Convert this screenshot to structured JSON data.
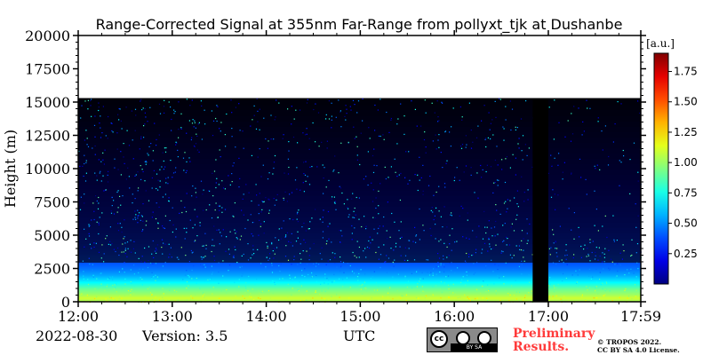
{
  "chart_data": {
    "type": "heatmap",
    "title": "Range-Corrected Signal at 355nm Far-Range from pollyxt_tjk at Dushanbe",
    "xlabel": "",
    "ylabel": "Height (m)",
    "x_ticks": [
      "12:00",
      "13:00",
      "14:00",
      "15:00",
      "16:00",
      "17:00",
      "17:59"
    ],
    "x_range": [
      "12:00",
      "17:59"
    ],
    "y_ticks": [
      0,
      2500,
      5000,
      7500,
      10000,
      12500,
      15000,
      17500,
      20000
    ],
    "ylim": [
      0,
      20000
    ],
    "data_top_height": 15300,
    "colorbar": {
      "label": "[a.u.]",
      "ticks": [
        0.25,
        0.5,
        0.75,
        1.0,
        1.25,
        1.5,
        1.75
      ],
      "tick_labels": [
        "0.25",
        "0.50",
        "0.75",
        "1.00",
        "1.25",
        "1.50",
        "1.75"
      ],
      "range": [
        0,
        1.9
      ],
      "colormap": "jet"
    },
    "no_data_intervals": [
      {
        "start": "16:50",
        "end": "17:00"
      }
    ],
    "profile": {
      "height_m": [
        0,
        300,
        600,
        1000,
        1500,
        2000,
        2500,
        3000,
        4000,
        5000,
        6000,
        8000,
        10000,
        12500,
        15000
      ],
      "typical_signal": [
        1.0,
        1.1,
        1.0,
        0.9,
        0.7,
        0.55,
        0.45,
        0.38,
        0.33,
        0.3,
        0.28,
        0.25,
        0.22,
        0.2,
        0.18
      ]
    }
  },
  "footer": {
    "date": "2022-08-30",
    "version": "Version: 3.5",
    "xaxis_unit": "UTC",
    "preliminary_line1": "Preliminary",
    "preliminary_line2": "Results.",
    "copyright_line1": "© TROPOS 2022.",
    "copyright_line2": "CC BY SA 4.0 License.",
    "license_badge": {
      "cc": "cc",
      "strip": "BY     SA"
    }
  }
}
